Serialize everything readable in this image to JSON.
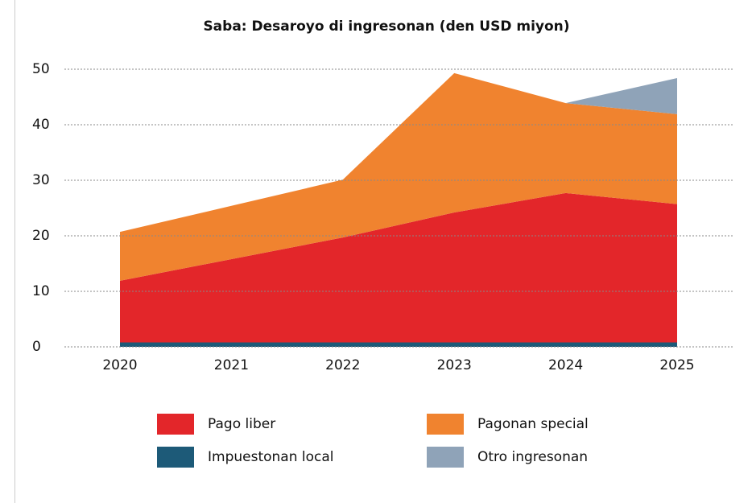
{
  "chart_data": {
    "type": "area",
    "title": "Saba: Desaroyo di ingresonan (den USD miyon)",
    "categories": [
      "2020",
      "2021",
      "2022",
      "2023",
      "2024",
      "2025"
    ],
    "series": [
      {
        "name": "Impuestonan local",
        "color": "#1d5a78",
        "values": [
          0.8,
          0.8,
          0.8,
          0.8,
          0.8,
          0.8
        ]
      },
      {
        "name": "Pago liber",
        "color": "#e3262a",
        "values": [
          11.1,
          15.0,
          18.9,
          23.4,
          26.9,
          24.9
        ]
      },
      {
        "name": "Pagonan special",
        "color": "#f0832f",
        "values": [
          8.8,
          9.6,
          10.4,
          25.1,
          16.2,
          16.2
        ]
      },
      {
        "name": "Otro ingresonan",
        "color": "#8fa3b8",
        "values": [
          0,
          0,
          0,
          0,
          0,
          6.5
        ]
      }
    ],
    "stacked": true,
    "ylim": [
      0,
      50
    ],
    "yticks": [
      0,
      10,
      20,
      30,
      40,
      50
    ],
    "grid": true
  }
}
